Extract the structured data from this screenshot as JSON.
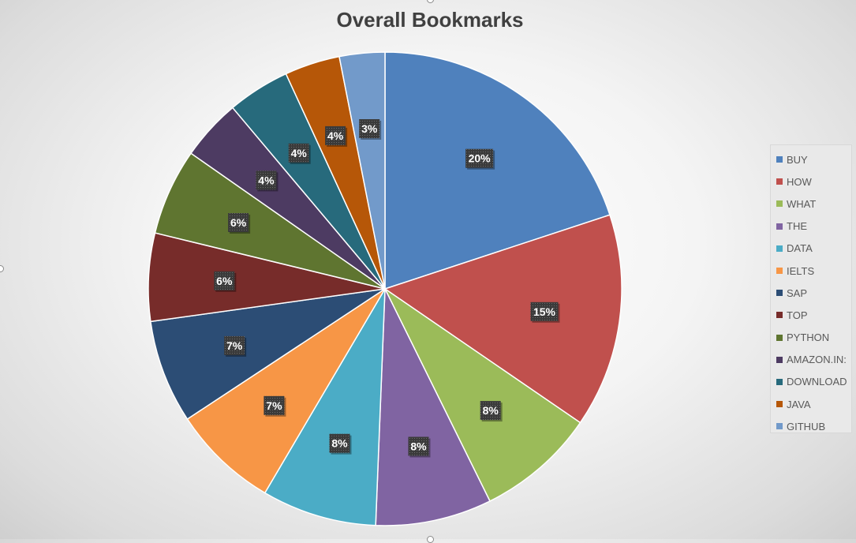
{
  "chart_data": {
    "type": "pie",
    "title": "Overall Bookmarks",
    "categories": [
      "BUY",
      "HOW",
      "WHAT",
      "THE",
      "DATA",
      "IELTS",
      "SAP",
      "TOP",
      "PYTHON",
      "AMAZON.IN:",
      "DOWNLOAD",
      "JAVA",
      "GITHUB"
    ],
    "values": [
      20.6,
      15.1,
      8.4,
      8.2,
      8.1,
      7.5,
      7.3,
      6.2,
      6.1,
      4.3,
      4.4,
      3.9,
      3.2
    ],
    "data_labels": [
      "20%",
      "15%",
      "8%",
      "8%",
      "8%",
      "7%",
      "7%",
      "6%",
      "6%",
      "4%",
      "4%",
      "4%",
      "3%"
    ],
    "colors": [
      "#4f81bd",
      "#c0504d",
      "#9bbb59",
      "#8064a2",
      "#4bacc6",
      "#f79646",
      "#2c4d75",
      "#772c2a",
      "#5f7530",
      "#4d3b62",
      "#276a7c",
      "#b65708",
      "#729aca"
    ],
    "legend": "right",
    "start_angle": "12 o'clock, clockwise"
  }
}
